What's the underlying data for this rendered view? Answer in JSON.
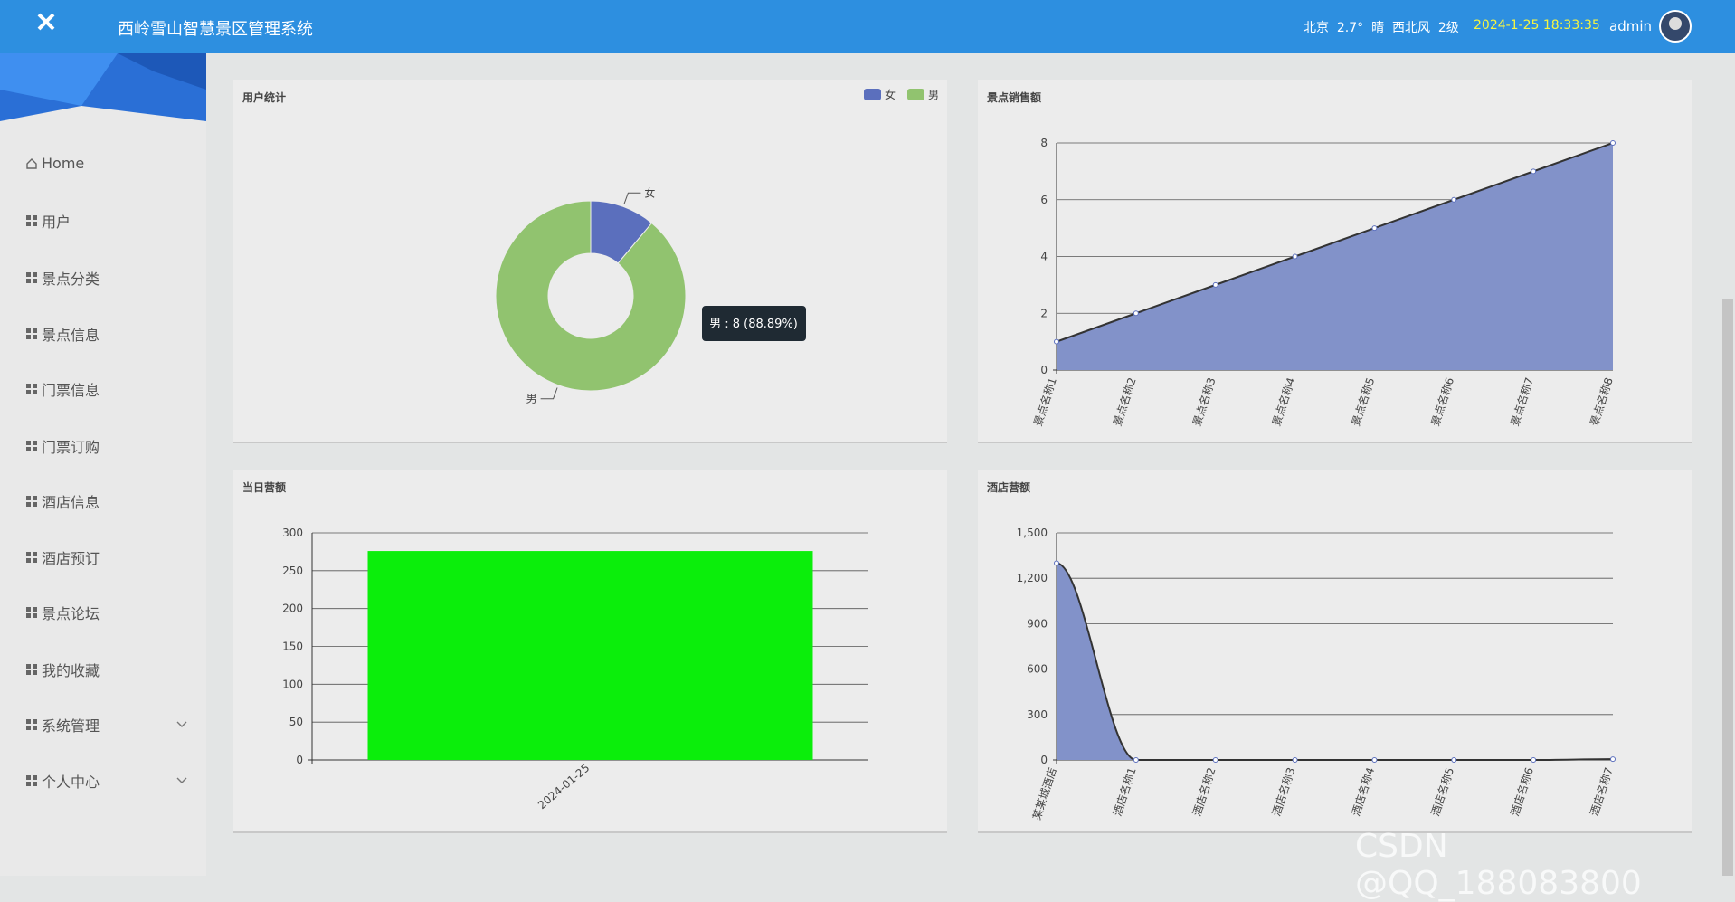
{
  "header": {
    "title": "西岭雪山智慧景区管理系统",
    "weather": "北京  2.7°  晴  西北风  2级",
    "datetime": "2024-1-25 18:33:35",
    "user": "admin"
  },
  "sidebar": {
    "items": [
      "Home",
      "用户",
      "景点分类",
      "景点信息",
      "门票信息",
      "门票订购",
      "酒店信息",
      "酒店预订",
      "景点论坛",
      "我的收藏",
      "系统管理",
      "个人中心"
    ]
  },
  "watermark": "CSDN @QQ_188083800",
  "chart_data": [
    {
      "type": "pie",
      "title": "用户统计",
      "categories": [
        "女",
        "男"
      ],
      "values": [
        1,
        8
      ],
      "colors": [
        "#5b6fbd",
        "#91c36f"
      ],
      "legend": "top-right",
      "tooltip": "男 : 8 (88.89%)"
    },
    {
      "type": "line",
      "title": "景点销售额",
      "categories": [
        "景点名称1",
        "景点名称2",
        "景点名称3",
        "景点名称4",
        "景点名称5",
        "景点名称6",
        "景点名称7",
        "景点名称8"
      ],
      "values": [
        1,
        2,
        3,
        4,
        5,
        6,
        7,
        8
      ],
      "color": "#8292c9",
      "ylim": [
        0,
        8
      ],
      "yticks": [
        0,
        2,
        4,
        6,
        8
      ],
      "grid": true
    },
    {
      "type": "bar",
      "title": "当日营额",
      "categories": [
        "2024-01-25"
      ],
      "values": [
        276
      ],
      "color": "#0bee0b",
      "ylim": [
        0,
        300
      ],
      "yticks": [
        0,
        50,
        100,
        150,
        200,
        250,
        300
      ],
      "grid": true
    },
    {
      "type": "line",
      "smooth": true,
      "title": "酒店营额",
      "categories": [
        "某某城酒店",
        "酒店名称1",
        "酒店名称2",
        "酒店名称3",
        "酒店名称4",
        "酒店名称5",
        "酒店名称6",
        "酒店名称7"
      ],
      "values": [
        1300,
        0,
        0,
        0,
        0,
        0,
        0,
        5
      ],
      "color": "#8292c9",
      "ylim": [
        0,
        1500
      ],
      "yticks": [
        0,
        300,
        600,
        900,
        {
          "value": 1200,
          "label": "1,200"
        },
        {
          "value": 1500,
          "label": "1,500"
        }
      ],
      "grid": true
    }
  ]
}
